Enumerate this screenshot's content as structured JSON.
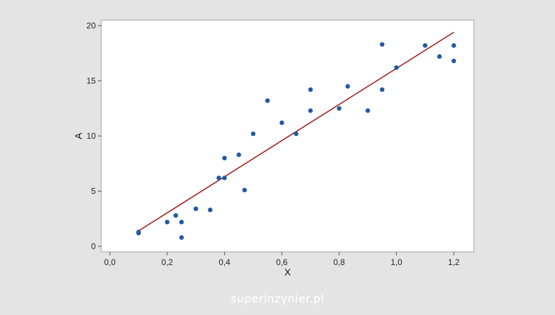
{
  "chart_data": {
    "type": "scatter",
    "title": "",
    "xlabel": "X",
    "ylabel": "A",
    "xlim": [
      -0.03,
      1.27
    ],
    "ylim": [
      -0.5,
      20.5
    ],
    "grid": false,
    "x_ticks": [
      0.0,
      0.2,
      0.4,
      0.6,
      0.8,
      1.0,
      1.2
    ],
    "x_tick_labels": [
      "0,0",
      "0,2",
      "0,4",
      "0,6",
      "0,8",
      "1,0",
      "1,2"
    ],
    "y_ticks": [
      0,
      5,
      10,
      15,
      20
    ],
    "y_tick_labels": [
      "0",
      "5",
      "10",
      "15",
      "20"
    ],
    "points": [
      {
        "x": 0.1,
        "y": 1.3
      },
      {
        "x": 0.1,
        "y": 1.2
      },
      {
        "x": 0.2,
        "y": 2.2
      },
      {
        "x": 0.23,
        "y": 2.8
      },
      {
        "x": 0.25,
        "y": 2.2
      },
      {
        "x": 0.25,
        "y": 0.8
      },
      {
        "x": 0.3,
        "y": 3.4
      },
      {
        "x": 0.35,
        "y": 3.3
      },
      {
        "x": 0.38,
        "y": 6.2
      },
      {
        "x": 0.4,
        "y": 6.2
      },
      {
        "x": 0.4,
        "y": 8.0
      },
      {
        "x": 0.45,
        "y": 8.3
      },
      {
        "x": 0.47,
        "y": 5.1
      },
      {
        "x": 0.5,
        "y": 10.2
      },
      {
        "x": 0.55,
        "y": 13.2
      },
      {
        "x": 0.6,
        "y": 11.2
      },
      {
        "x": 0.65,
        "y": 10.2
      },
      {
        "x": 0.7,
        "y": 14.2
      },
      {
        "x": 0.7,
        "y": 12.3
      },
      {
        "x": 0.8,
        "y": 12.5
      },
      {
        "x": 0.83,
        "y": 14.5
      },
      {
        "x": 0.9,
        "y": 12.3
      },
      {
        "x": 0.95,
        "y": 18.3
      },
      {
        "x": 0.95,
        "y": 14.2
      },
      {
        "x": 1.0,
        "y": 16.2
      },
      {
        "x": 1.1,
        "y": 18.2
      },
      {
        "x": 1.15,
        "y": 17.2
      },
      {
        "x": 1.2,
        "y": 18.2
      },
      {
        "x": 1.2,
        "y": 16.8
      }
    ],
    "fit_line": {
      "x": [
        0.1,
        1.2
      ],
      "y": [
        1.4,
        19.4
      ]
    },
    "point_color": "#1f5aa6",
    "line_color": "#a01616"
  },
  "watermark": "superinzynier.pl"
}
